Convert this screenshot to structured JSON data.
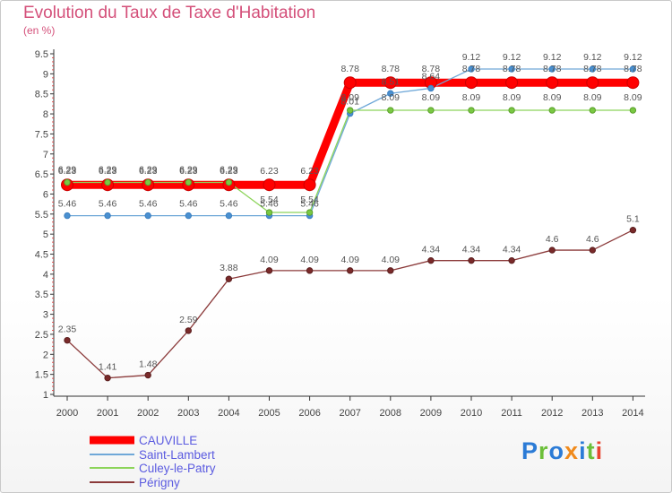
{
  "header": {
    "title": "Evolution du Taux de Taxe d'Habitation",
    "unit": "(en %)"
  },
  "logo": {
    "text": "Proxiti"
  },
  "chart_data": {
    "type": "line",
    "title": "Evolution du Taux de Taxe d'Habitation",
    "subtitle": "(en %)",
    "xlabel": "",
    "ylabel": "",
    "x": [
      "2000",
      "2001",
      "2002",
      "2003",
      "2004",
      "2005",
      "2006",
      "2007",
      "2008",
      "2009",
      "2010",
      "2011",
      "2012",
      "2013",
      "2014"
    ],
    "ylim": [
      1,
      9.5
    ],
    "yticks": [
      1,
      1.5,
      2,
      2.5,
      3,
      3.5,
      4,
      4.5,
      5,
      5.5,
      6,
      6.5,
      7,
      7.5,
      8,
      8.5,
      9,
      9.5
    ],
    "grid": false,
    "legend_position": "bottom-left",
    "series": [
      {
        "name": "CAUVILLE",
        "color": "#ff0000",
        "values": [
          6.23,
          6.23,
          6.23,
          6.23,
          6.23,
          6.23,
          6.23,
          8.78,
          8.78,
          8.78,
          8.78,
          8.78,
          8.78,
          8.78,
          8.78
        ]
      },
      {
        "name": "Saint-Lambert",
        "color": "#6fa8d8",
        "values": [
          5.46,
          5.46,
          5.46,
          5.46,
          5.46,
          5.46,
          5.46,
          8.01,
          8.51,
          8.64,
          9.12,
          9.12,
          9.12,
          9.12,
          9.12
        ]
      },
      {
        "name": "Culey-le-Patry",
        "color": "#8cd45a",
        "values": [
          6.29,
          6.29,
          6.29,
          6.29,
          6.29,
          5.54,
          5.54,
          8.09,
          8.09,
          8.09,
          8.09,
          8.09,
          8.09,
          8.09,
          8.09
        ]
      },
      {
        "name": "Périgny",
        "color": "#8b3a3a",
        "values": [
          2.35,
          1.41,
          1.48,
          2.59,
          3.88,
          4.09,
          4.09,
          4.09,
          4.09,
          4.34,
          4.34,
          4.34,
          4.6,
          4.6,
          5.1
        ]
      }
    ]
  },
  "colors": {
    "title": "#d4507a",
    "axis": "#333333",
    "minor_ticks": "#e05050",
    "legend_text": "#5b5be0"
  }
}
